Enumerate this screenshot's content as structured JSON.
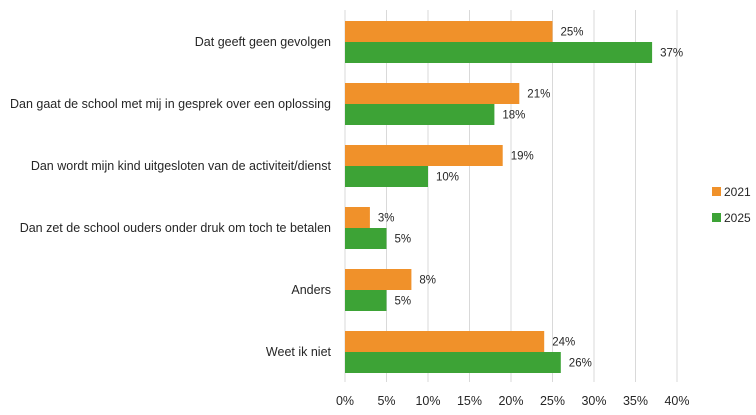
{
  "chart_data": {
    "type": "bar",
    "orientation": "horizontal",
    "title": "",
    "xlabel": "",
    "ylabel": "",
    "categories": [
      "Dat geeft geen gevolgen",
      "Dan gaat de school met mij in gesprek over een oplossing",
      "Dan wordt mijn kind uitgesloten van de activiteit/dienst",
      "Dan zet de school ouders onder druk om toch te betalen",
      "Anders",
      "Weet ik niet"
    ],
    "series": [
      {
        "name": "2021",
        "color": "#F0912A",
        "values": [
          25,
          21,
          19,
          3,
          8,
          24
        ],
        "labels": [
          "25%",
          "21%",
          "19%",
          "3%",
          "8%",
          "24%"
        ]
      },
      {
        "name": "2025",
        "color": "#3DA336",
        "values": [
          37,
          18,
          10,
          5,
          5,
          26
        ],
        "labels": [
          "37%",
          "18%",
          "10%",
          "5%",
          "5%",
          "26%"
        ]
      }
    ],
    "xlim": [
      0,
      40
    ],
    "ticks": [
      0,
      5,
      10,
      15,
      20,
      25,
      30,
      35,
      40
    ],
    "tick_labels": [
      "0%",
      "5%",
      "10%",
      "15%",
      "20%",
      "25%",
      "30%",
      "35%",
      "40%"
    ],
    "grid": true,
    "legend": {
      "position": "right",
      "entries": [
        "2021",
        "2025"
      ]
    }
  }
}
